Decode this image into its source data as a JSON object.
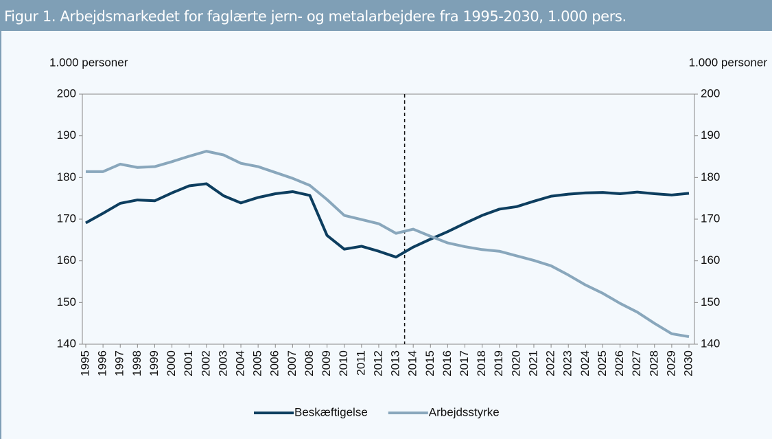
{
  "chart_data": {
    "type": "line",
    "title": "Figur 1. Arbejdsmarkedet for faglærte jern- og metalarbejdere fra 1995-2030, 1.000 pers.",
    "y_label": "1.000 personer",
    "y2_label": "1.000 personer",
    "categories": [
      "1995",
      "1996",
      "1997",
      "1998",
      "1999",
      "2000",
      "2001",
      "2002",
      "2003",
      "2004",
      "2005",
      "2006",
      "2007",
      "2008",
      "2009",
      "2010",
      "2011",
      "2012",
      "2013",
      "2014",
      "2015",
      "2016",
      "2017",
      "2018",
      "2019",
      "2020",
      "2021",
      "2022",
      "2023",
      "2024",
      "2025",
      "2026",
      "2027",
      "2028",
      "2029",
      "2030"
    ],
    "series": [
      {
        "name": "Beskæftigelse",
        "color": "#0d3e5f",
        "values": [
          169.1,
          171.4,
          173.8,
          174.6,
          174.4,
          176.3,
          178.0,
          178.5,
          175.6,
          173.9,
          175.2,
          176.1,
          176.6,
          175.7,
          166.1,
          162.8,
          163.5,
          162.3,
          160.9,
          163.3,
          165.2,
          167.0,
          169.0,
          170.9,
          172.4,
          173.0,
          174.3,
          175.5,
          176.0,
          176.3,
          176.4,
          176.1,
          176.5,
          176.1,
          175.8,
          176.2
        ]
      },
      {
        "name": "Arbejdsstyrke",
        "color": "#89a7bc",
        "values": [
          181.4,
          181.4,
          183.2,
          182.4,
          182.6,
          183.8,
          185.1,
          186.3,
          185.4,
          183.4,
          182.6,
          181.2,
          179.8,
          178.1,
          174.7,
          170.9,
          169.9,
          168.9,
          166.6,
          167.6,
          165.9,
          164.3,
          163.4,
          162.7,
          162.3,
          161.2,
          160.1,
          158.8,
          156.6,
          154.2,
          152.2,
          149.8,
          147.7,
          145.0,
          142.5,
          141.8
        ]
      }
    ],
    "forecast_from": "2014",
    "ylim": [
      140,
      200
    ],
    "yticks": [
      140,
      150,
      160,
      170,
      180,
      190,
      200
    ],
    "y2lim": [
      140,
      200
    ],
    "y2ticks": [
      140,
      150,
      160,
      170,
      180,
      190,
      200
    ],
    "grid": false,
    "legend": "bottom"
  }
}
